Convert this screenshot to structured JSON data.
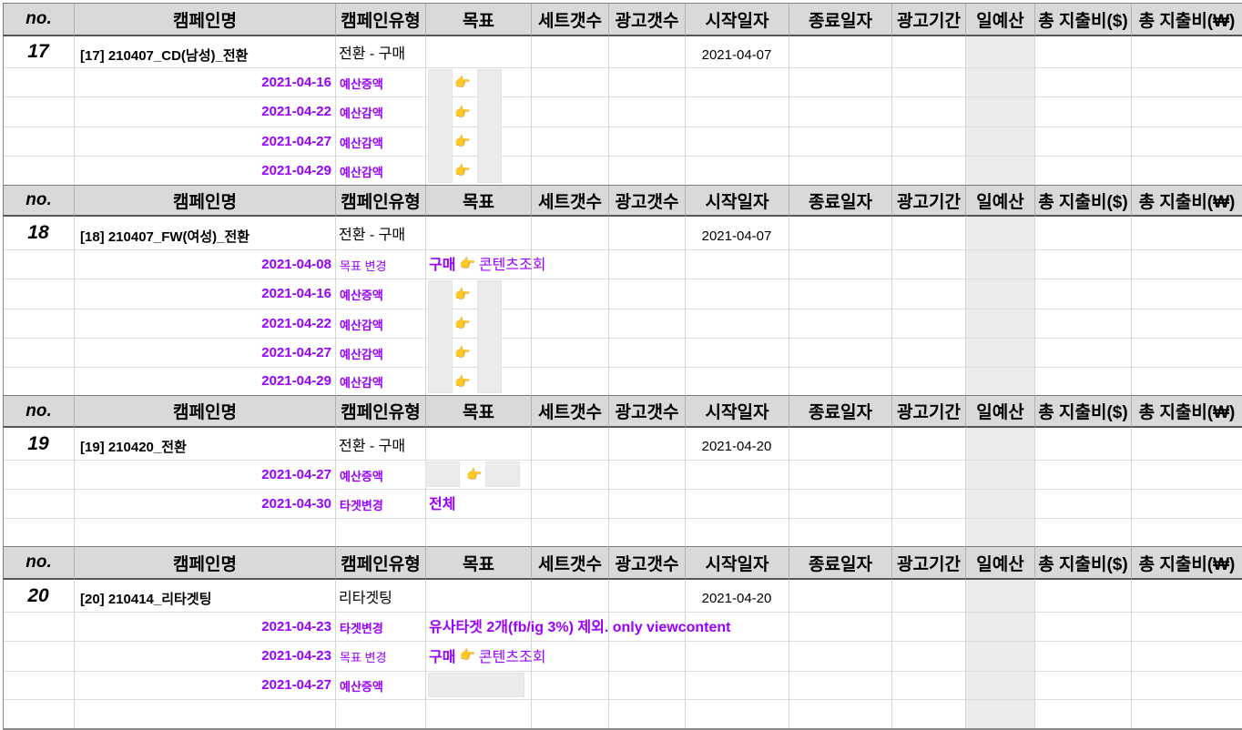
{
  "columns": [
    "no.",
    "캠페인명",
    "캠페인유형",
    "목표",
    "세트갯수",
    "광고갯수",
    "시작일자",
    "종료일자",
    "광고기간",
    "일예산",
    "총 지출비($)",
    "총 지출비(₩)"
  ],
  "pointer_glyph": "👉",
  "campaigns": [
    {
      "no": "17",
      "name": "[17] 210407_CD(남성)_전환",
      "type": "전환 - 구매",
      "start": "2021-04-07",
      "history": [
        {
          "date": "2021-04-16",
          "note": "예산증액"
        },
        {
          "date": "2021-04-22",
          "note": "예산감액"
        },
        {
          "date": "2021-04-27",
          "note": "예산감액"
        },
        {
          "date": "2021-04-29",
          "note": "예산감액"
        }
      ]
    },
    {
      "no": "18",
      "name": "[18] 210407_FW(여성)_전환",
      "type": "전환 - 구매",
      "start": "2021-04-07",
      "history": [
        {
          "date": "2021-04-08",
          "note": "목표 변경",
          "from": "구매",
          "to": "콘텐츠조회"
        },
        {
          "date": "2021-04-16",
          "note": "예산증액"
        },
        {
          "date": "2021-04-22",
          "note": "예산감액"
        },
        {
          "date": "2021-04-27",
          "note": "예산감액"
        },
        {
          "date": "2021-04-29",
          "note": "예산감액"
        }
      ]
    },
    {
      "no": "19",
      "name": "[19] 210420_전환",
      "type": "전환 - 구매",
      "start": "2021-04-20",
      "history": [
        {
          "date": "2021-04-27",
          "note": "예산증액"
        },
        {
          "date": "2021-04-30",
          "note": "타겟변경",
          "value": "전체"
        }
      ]
    },
    {
      "no": "20",
      "name": "[20] 210414_리타겟팅",
      "type": "리타겟팅",
      "start": "2021-04-20",
      "history": [
        {
          "date": "2021-04-23",
          "note": "타겟변경",
          "value": "유사타겟 2개(fb/ig 3%) 제외. only viewcontent"
        },
        {
          "date": "2021-04-23",
          "note": "목표 변경",
          "from": "구매",
          "to": "콘텐츠조회"
        },
        {
          "date": "2021-04-27",
          "note": "예산증액"
        }
      ]
    }
  ]
}
